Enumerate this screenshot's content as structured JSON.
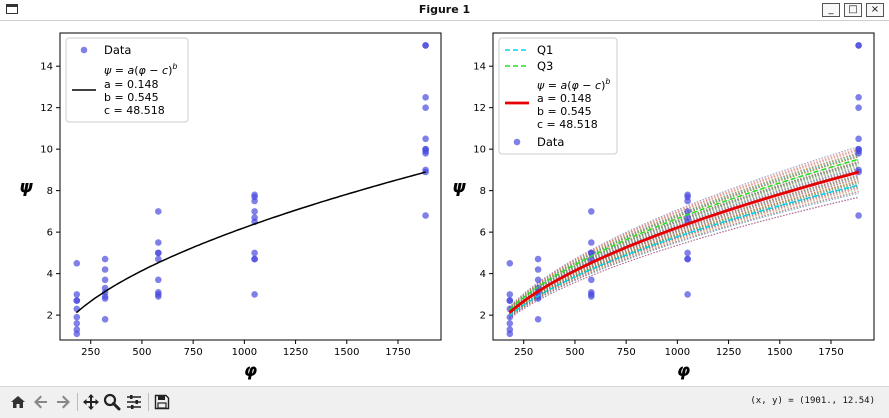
{
  "window": {
    "title": "Figure 1",
    "min_label": "_",
    "max_label": "□",
    "close_label": "×"
  },
  "toolbar": {
    "icons": [
      "home-icon",
      "back-arrow-icon",
      "forward-arrow-icon",
      "pan-icon",
      "zoom-icon",
      "configure-subplots-icon",
      "save-icon"
    ],
    "coords_text": "(x, y) = (1901., 12.54)"
  },
  "colors": {
    "data": "#4a4adf",
    "fit": "#000000",
    "fit_red": "#e60000",
    "q1": "#00d5e8",
    "q3": "#22e022"
  },
  "chart_data": [
    {
      "type": "scatter",
      "xlabel": "φ",
      "ylabel": "ψ",
      "xlim": [
        100,
        1960
      ],
      "ylim": [
        0.8,
        15.6
      ],
      "xticks": [
        250,
        500,
        750,
        1000,
        1250,
        1500,
        1750
      ],
      "yticks": [
        2,
        4,
        6,
        8,
        10,
        12,
        14
      ],
      "legend_position": "upper-left",
      "series": [
        {
          "name": "Data",
          "kind": "scatter",
          "x": [
            182,
            182,
            182,
            182,
            182,
            182,
            182,
            182,
            182,
            320,
            320,
            320,
            320,
            320,
            320,
            320,
            320,
            580,
            580,
            580,
            580,
            580,
            580,
            580,
            580,
            580,
            1050,
            1050,
            1050,
            1050,
            1050,
            1050,
            1050,
            1050,
            1050,
            1050,
            1885,
            1885,
            1885,
            1885,
            1885,
            1885,
            1885,
            1885,
            1885,
            1885,
            1885,
            1885
          ],
          "y": [
            1.1,
            1.3,
            1.6,
            1.9,
            2.3,
            2.7,
            2.7,
            3.0,
            4.5,
            1.8,
            2.8,
            2.9,
            3.1,
            3.3,
            3.7,
            4.2,
            4.7,
            2.9,
            3.0,
            3.1,
            3.7,
            4.7,
            5.0,
            5.0,
            5.5,
            7.0,
            3.0,
            4.7,
            4.7,
            5.0,
            6.5,
            6.7,
            7.0,
            7.5,
            7.7,
            7.8,
            6.8,
            8.9,
            9.0,
            9.8,
            9.9,
            10.0,
            10.0,
            10.5,
            12.0,
            12.5,
            15.0,
            15.0
          ]
        },
        {
          "name": "Fit",
          "kind": "line",
          "formula": "ψ = a(φ − c)^b"
        }
      ],
      "fit_params": {
        "a": 0.148,
        "b": 0.545,
        "c": 48.518
      },
      "legend": [
        "Data",
        "$\\psi = a(\\varphi - c)^b$",
        "a = 0.148",
        "b = 0.545",
        "c = 48.518"
      ]
    },
    {
      "type": "line",
      "xlabel": "φ",
      "ylabel": "ψ",
      "xlim": [
        100,
        1960
      ],
      "ylim": [
        0.8,
        15.6
      ],
      "xticks": [
        250,
        500,
        750,
        1000,
        1250,
        1500,
        1750
      ],
      "yticks": [
        2,
        4,
        6,
        8,
        10,
        12,
        14
      ],
      "legend_position": "upper-left",
      "series": [
        {
          "name": "Q1",
          "kind": "line",
          "style": "dashed",
          "scale": 0.93
        },
        {
          "name": "Q3",
          "kind": "line",
          "style": "dashed",
          "scale": 1.07
        },
        {
          "name": "Fit",
          "kind": "line",
          "formula": "ψ = a(φ − c)^b"
        },
        {
          "name": "Data",
          "kind": "scatter"
        }
      ],
      "fit_params": {
        "a": 0.148,
        "b": 0.545,
        "c": 48.518
      },
      "bootstrap_curves": 150,
      "legend": [
        "Q1",
        "Q3",
        "$\\psi = a(\\varphi - c)^b$",
        "a = 0.148",
        "b = 0.545",
        "c = 48.518",
        "Data"
      ]
    }
  ]
}
